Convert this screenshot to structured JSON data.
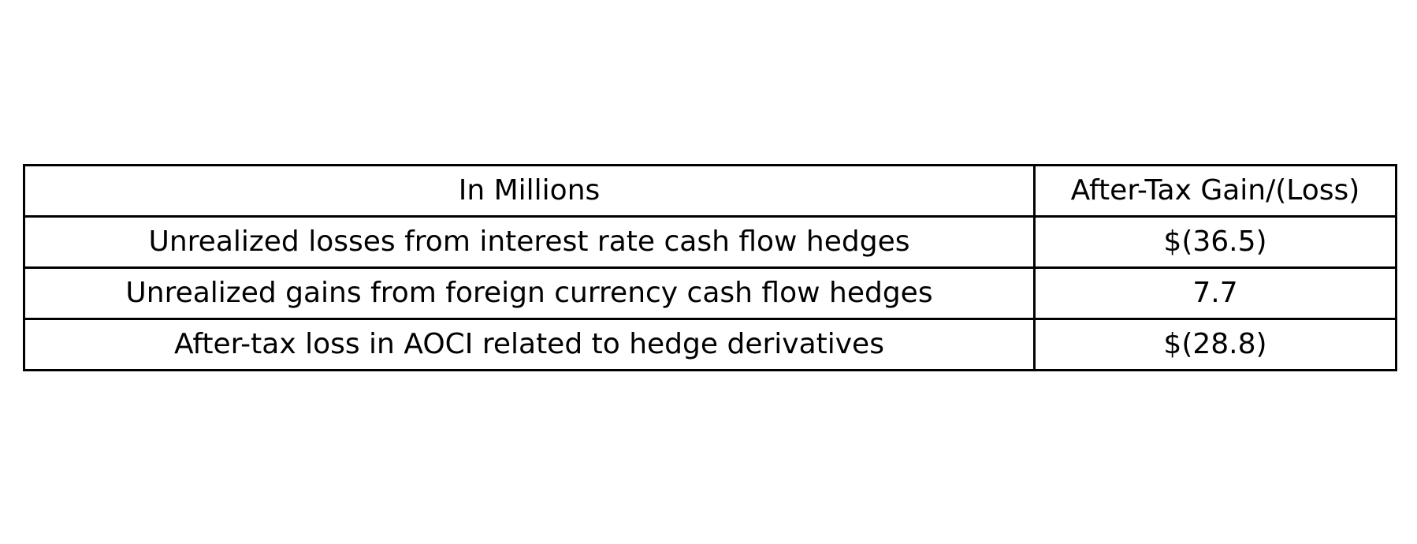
{
  "chart_data": {
    "type": "table",
    "columns": [
      "In Millions",
      "After-Tax Gain/(Loss)"
    ],
    "rows": [
      [
        "Unrealized losses from interest rate cash flow hedges",
        "$(36.5)"
      ],
      [
        "Unrealized gains from foreign currency cash flow hedges",
        "7.7"
      ],
      [
        "After-tax loss in AOCI related to hedge derivatives",
        "$(28.8)"
      ]
    ]
  }
}
